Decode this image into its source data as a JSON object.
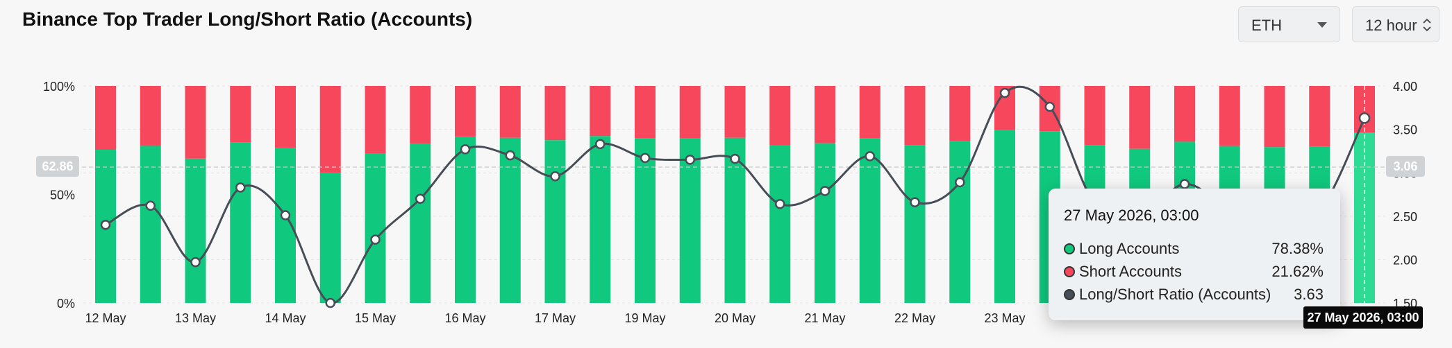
{
  "header": {
    "title": "Binance Top Trader Long/Short Ratio (Accounts)",
    "asset_select": "ETH",
    "interval_select": "12 hour"
  },
  "crosshair": {
    "left_value": "62.86",
    "right_value": "3.06",
    "x_label": "27 May 2026, 03:00"
  },
  "tooltip": {
    "title": "27 May 2026, 03:00",
    "rows": [
      {
        "name": "Long Accounts",
        "value": "78.38%",
        "color": "#10c87e"
      },
      {
        "name": "Short Accounts",
        "value": "21.62%",
        "color": "#f6475d"
      },
      {
        "name": "Long/Short Ratio (Accounts)",
        "value": "3.63",
        "color": "#474d57"
      }
    ]
  },
  "colors": {
    "long": "#10c87e",
    "short": "#f6475d",
    "ratio_line": "#474d57",
    "grid": "#e6e6e6"
  },
  "chart_data": {
    "type": "bar",
    "stacked": true,
    "title": "Binance Top Trader Long/Short Ratio (Accounts)",
    "x_tick_labels": [
      "12 May",
      "13 May",
      "14 May",
      "15 May",
      "16 May",
      "17 May",
      "19 May",
      "20 May",
      "21 May",
      "22 May",
      "23 May"
    ],
    "y_left": {
      "ticks": [
        "0%",
        "50%",
        "100%"
      ],
      "range": [
        0,
        100
      ]
    },
    "y_right": {
      "ticks": [
        "1.50",
        "2.00",
        "2.50",
        "3.00",
        "3.50",
        "4.00"
      ],
      "range": [
        1.5,
        4.0
      ]
    },
    "series": [
      {
        "name": "Long Accounts",
        "values": [
          70.6,
          72.4,
          66.5,
          74.0,
          71.5,
          60.0,
          69.0,
          73.5,
          76.6,
          76.1,
          75.0,
          76.9,
          76.0,
          75.8,
          76.1,
          72.7,
          73.6,
          76.0,
          72.8,
          74.7,
          79.6,
          79.0,
          72.8,
          71.0,
          74.3,
          72.3,
          71.8,
          72.0,
          78.38
        ]
      },
      {
        "name": "Short Accounts",
        "values": [
          29.4,
          27.6,
          33.5,
          26.0,
          28.5,
          40.0,
          31.0,
          26.5,
          23.4,
          23.9,
          25.0,
          23.1,
          24.0,
          24.2,
          23.9,
          27.3,
          26.4,
          24.0,
          27.2,
          25.3,
          20.4,
          21.0,
          27.2,
          29.0,
          25.7,
          27.7,
          28.2,
          28.0,
          21.62
        ]
      },
      {
        "name": "Long/Short Ratio (Accounts)",
        "values": [
          2.4,
          2.62,
          1.97,
          2.83,
          2.51,
          1.5,
          2.23,
          2.7,
          3.27,
          3.2,
          2.96,
          3.33,
          3.17,
          3.15,
          3.16,
          2.64,
          2.79,
          3.19,
          2.66,
          2.89,
          3.92,
          3.76,
          2.65,
          2.5,
          2.87,
          2.6,
          2.55,
          2.57,
          3.63
        ]
      }
    ],
    "grid": true
  }
}
